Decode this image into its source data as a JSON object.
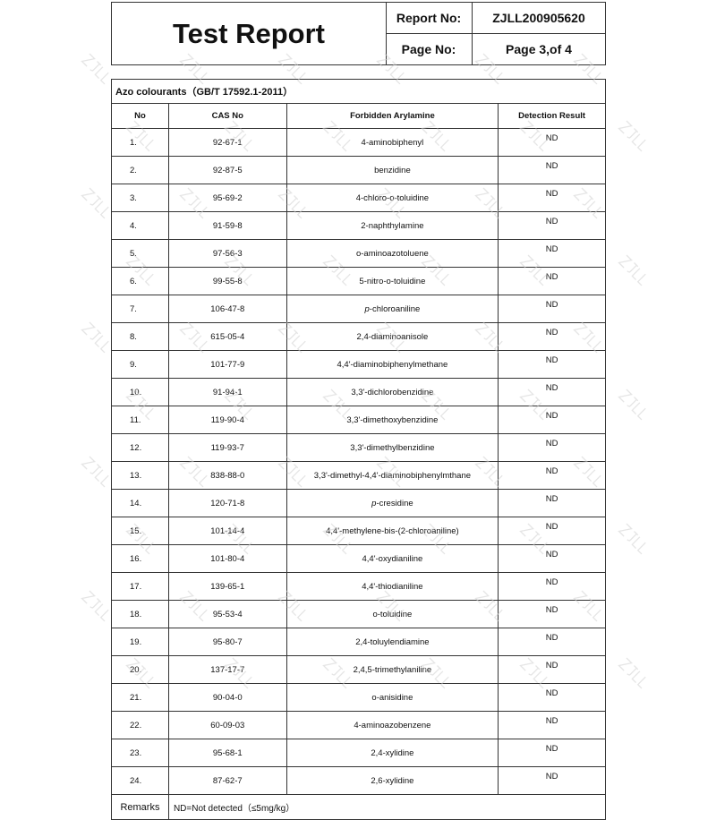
{
  "header": {
    "title": "Test Report",
    "report_no_label": "Report No:",
    "report_no": "ZJLL200905620",
    "page_no_label": "Page No:",
    "page_no": "Page 3,of 4"
  },
  "watermark": "ZJLL",
  "table": {
    "caption": "Azo colourants（GB/T 17592.1-2011）",
    "columns": [
      "No",
      "CAS No",
      "Forbidden Arylamine",
      "Detection Result"
    ],
    "rows": [
      {
        "no": "1.",
        "cas": "92-67-1",
        "name": "4-aminobiphenyl",
        "result": "ND"
      },
      {
        "no": "2.",
        "cas": "92-87-5",
        "name": "benzidine",
        "result": "ND"
      },
      {
        "no": "3.",
        "cas": "95-69-2",
        "name": "4-chloro-o-toluidine",
        "result": "ND"
      },
      {
        "no": "4.",
        "cas": "91-59-8",
        "name": "2-naphthylamine",
        "result": "ND"
      },
      {
        "no": "5.",
        "cas": "97-56-3",
        "name": "o-aminoazotoluene",
        "result": "ND"
      },
      {
        "no": "6.",
        "cas": "99-55-8",
        "name": "5-nitro-o-toluidine",
        "result": "ND"
      },
      {
        "no": "7.",
        "cas": "106-47-8",
        "name": "p-chloroaniline",
        "result": "ND"
      },
      {
        "no": "8.",
        "cas": "615-05-4",
        "name": "2,4-diaminoanisole",
        "result": "ND"
      },
      {
        "no": "9.",
        "cas": "101-77-9",
        "name": "4,4'-diaminobiphenylmethane",
        "result": "ND"
      },
      {
        "no": "10.",
        "cas": "91-94-1",
        "name": "3,3'-dichlorobenzidine",
        "result": "ND"
      },
      {
        "no": "11.",
        "cas": "119-90-4",
        "name": "3,3'-dimethoxybenzidine",
        "result": "ND"
      },
      {
        "no": "12.",
        "cas": "119-93-7",
        "name": "3,3'-dimethylbenzidine",
        "result": "ND"
      },
      {
        "no": "13.",
        "cas": "838-88-0",
        "name": "3,3'-dimethyl-4,4'-diaminobiphenylmthane",
        "result": "ND"
      },
      {
        "no": "14.",
        "cas": "120-71-8",
        "name": "p-cresidine",
        "result": "ND"
      },
      {
        "no": "15.",
        "cas": "101-14-4",
        "name": "4,4'-methylene-bis-(2-chloroaniline)",
        "result": "ND"
      },
      {
        "no": "16.",
        "cas": "101-80-4",
        "name": "4,4'-oxydianiline",
        "result": "ND"
      },
      {
        "no": "17.",
        "cas": "139-65-1",
        "name": "4,4'-thiodianiline",
        "result": "ND"
      },
      {
        "no": "18.",
        "cas": "95-53-4",
        "name": "o-toluidine",
        "result": "ND"
      },
      {
        "no": "19.",
        "cas": "95-80-7",
        "name": "2,4-toluylendiamine",
        "result": "ND"
      },
      {
        "no": "20.",
        "cas": "137-17-7",
        "name": "2,4,5-trimethylaniline",
        "result": "ND"
      },
      {
        "no": "21.",
        "cas": "90-04-0",
        "name": "o-anisidine",
        "result": "ND"
      },
      {
        "no": "22.",
        "cas": "60-09-03",
        "name": "4-aminoazobenzene",
        "result": "ND"
      },
      {
        "no": "23.",
        "cas": "95-68-1",
        "name": "2,4-xylidine",
        "result": "ND"
      },
      {
        "no": "24.",
        "cas": "87-62-7",
        "name": "2,6-xylidine",
        "result": "ND"
      }
    ],
    "remarks_label": "Remarks",
    "remarks": "ND=Not detected（≤5mg/kg）"
  }
}
